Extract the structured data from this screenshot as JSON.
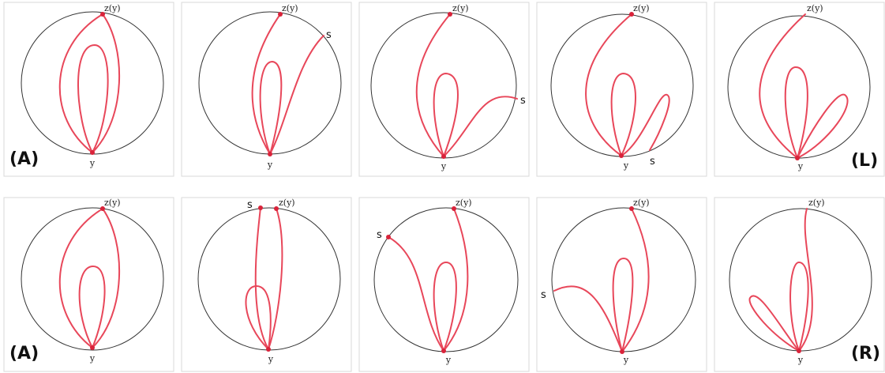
{
  "panels": [
    {
      "top": "z(y)",
      "bottom": "y",
      "tag": "(A)"
    },
    {
      "top": "z(y)",
      "bottom": "y",
      "s": "s"
    },
    {
      "top": "z(y)",
      "bottom": "y",
      "s": "s"
    },
    {
      "top": "z(y)",
      "bottom": "y",
      "s": "s"
    },
    {
      "top": "z(y)",
      "bottom": "y",
      "tag": "(L)"
    },
    {
      "top": "z(y)",
      "bottom": "y",
      "tag": "(A)"
    },
    {
      "top": "z(y)",
      "bottom": "y",
      "s": "s"
    },
    {
      "top": "z(y)",
      "bottom": "y",
      "s": "s"
    },
    {
      "top": "z(y)",
      "bottom": "y",
      "s": "s"
    },
    {
      "top": "z(y)",
      "bottom": "y",
      "tag": "(R)"
    }
  ]
}
